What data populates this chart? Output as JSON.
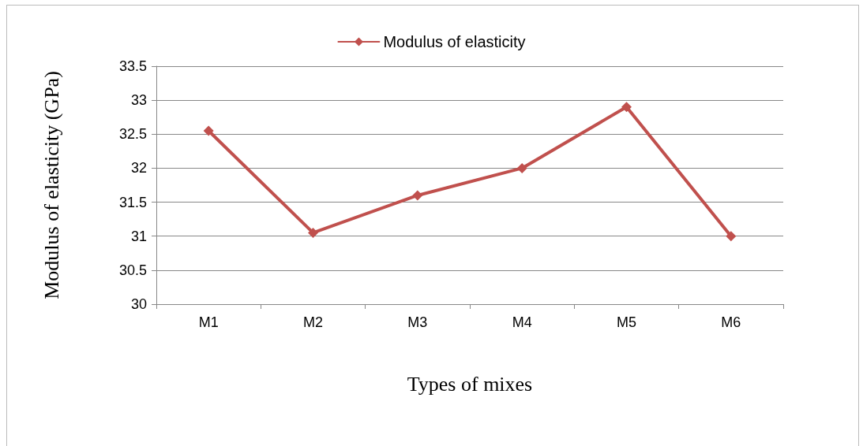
{
  "chart_data": {
    "type": "line",
    "xlabel": "Types of mixes",
    "ylabel": "Modulus of elasticity (GPa)",
    "categories": [
      "M1",
      "M2",
      "M3",
      "M4",
      "M5",
      "M6"
    ],
    "series": [
      {
        "name": "Modulus of elasticity",
        "color": "#c0504d",
        "values": [
          32.55,
          31.05,
          31.6,
          32.0,
          32.9,
          31.0
        ]
      }
    ],
    "ylim": [
      30,
      33.5
    ],
    "yticks": [
      30,
      30.5,
      31,
      31.5,
      32,
      32.5,
      33,
      33.5
    ],
    "grid": "y",
    "legend": "top",
    "marker": "diamond",
    "line_style": "solid"
  }
}
